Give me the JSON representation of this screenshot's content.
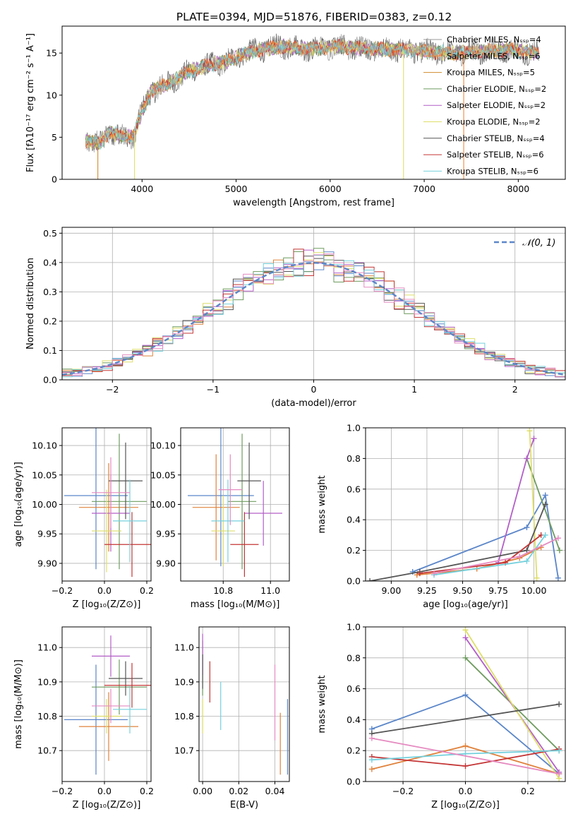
{
  "figure": {
    "title": "PLATE=0394, MJD=51876, FIBERID=0383, z=0.12"
  },
  "colors": {
    "series": [
      "#9a9a9a",
      "#f08a3e",
      "#d08b2b",
      "#6e9b5f",
      "#b35fc7",
      "#dede6a",
      "#555555",
      "#c43535",
      "#74d1dd"
    ],
    "pdf": "#5b86c9"
  },
  "chart_data": [
    {
      "id": "spectrum",
      "type": "line",
      "xlabel": "wavelength [Angstrom, rest frame]",
      "ylabel": "Flux [fλ10⁻¹⁷ erg cm⁻² s⁻¹ A⁻¹]",
      "xlim": [
        3150,
        8500
      ],
      "ylim": [
        0,
        18.2
      ],
      "xticks": [
        4000,
        5000,
        6000,
        7000,
        8000
      ],
      "yticks": [
        0,
        5,
        10,
        15
      ],
      "grid": false,
      "legend_position": "upper-right",
      "legend": [
        "Chabrier MILES, Nₛₛₚ=4",
        "Salpeter MILES, Nₛₛₚ=6",
        "Kroupa MILES, Nₛₛₚ=5",
        "Chabrier ELODIE, Nₛₛₚ=2",
        "Salpeter ELODIE, Nₛₛₚ=2",
        "Kroupa ELODIE, Nₛₛₚ=2",
        "Chabrier STELIB, Nₛₛₚ=4",
        "Salpeter STELIB, Nₛₛₚ=6",
        "Kroupa STELIB, Nₛₛₚ=6"
      ],
      "x_range": [
        3400,
        8220
      ],
      "envelope": [
        [
          3400,
          4.6
        ],
        [
          3550,
          4.2
        ],
        [
          3650,
          5.6
        ],
        [
          3750,
          5.2
        ],
        [
          3900,
          5.0
        ],
        [
          4000,
          8.0
        ],
        [
          4100,
          10.5
        ],
        [
          4300,
          11.5
        ],
        [
          4500,
          12.8
        ],
        [
          4700,
          13.5
        ],
        [
          4900,
          14.0
        ],
        [
          5100,
          15.0
        ],
        [
          5300,
          15.5
        ],
        [
          5500,
          15.8
        ],
        [
          5800,
          15.5
        ],
        [
          6100,
          15.8
        ],
        [
          6400,
          15.5
        ],
        [
          6700,
          15.4
        ],
        [
          7000,
          15.2
        ],
        [
          7300,
          15.0
        ],
        [
          7600,
          15.2
        ],
        [
          7900,
          15.4
        ],
        [
          8220,
          15.0
        ]
      ],
      "dropouts": [
        {
          "x": 3530,
          "series": 2
        },
        {
          "x": 3920,
          "series": 5
        },
        {
          "x": 6780,
          "series": 5
        },
        {
          "x": 7420,
          "series": 1
        }
      ]
    },
    {
      "id": "residuals",
      "type": "histogram",
      "xlabel": "(data-model)/error",
      "ylabel": "Normed distribution",
      "xlim": [
        -2.5,
        2.5
      ],
      "ylim": [
        0,
        0.52
      ],
      "xticks": [
        -2,
        -1,
        0,
        1,
        2
      ],
      "yticks": [
        0.0,
        0.1,
        0.2,
        0.3,
        0.4,
        0.5
      ],
      "grid": true,
      "legend_position": "upper-right",
      "legend": [
        "𝒩(0, 1)"
      ],
      "bin_width": 0.1,
      "series_colors": [
        "#5b86c9",
        "#e0823c",
        "#6e9b5f",
        "#b35fc7",
        "#dede6a",
        "#555555",
        "#c43535",
        "#74d1dd",
        "#e58ac0"
      ]
    },
    {
      "id": "age-vs-Z",
      "type": "errorbar",
      "xlabel": "Z [log₁₀(Z/Z⊙)]",
      "ylabel": "age  [log₁₀(age/yr)]",
      "xlim": [
        -0.2,
        0.22
      ],
      "ylim": [
        9.87,
        10.13
      ],
      "xticks": [
        -0.2,
        0.0,
        0.2
      ],
      "xtick_labels": [
        "−0.2",
        "0.0",
        "0.2"
      ],
      "yticks": [
        9.9,
        9.95,
        10.0,
        10.05,
        10.1
      ],
      "grid": true,
      "points": [
        {
          "x": -0.04,
          "y": 10.015,
          "xerr": 0.15,
          "yerr": 0.125,
          "color": "#5b86c9"
        },
        {
          "x": 0.02,
          "y": 9.995,
          "xerr": 0.14,
          "yerr": 0.075,
          "color": "#e0823c"
        },
        {
          "x": 0.07,
          "y": 10.005,
          "xerr": 0.13,
          "yerr": 0.115,
          "color": "#6e9b5f"
        },
        {
          "x": 0.03,
          "y": 9.985,
          "xerr": 0.09,
          "yerr": 0.065,
          "color": "#b35fc7"
        },
        {
          "x": 0.01,
          "y": 9.955,
          "xerr": 0.07,
          "yerr": 0.07,
          "color": "#dede6a"
        },
        {
          "x": 0.1,
          "y": 10.04,
          "xerr": 0.08,
          "yerr": 0.065,
          "color": "#555555"
        },
        {
          "x": 0.13,
          "y": 9.932,
          "xerr": 0.13,
          "yerr": 0.055,
          "color": "#c43535"
        },
        {
          "x": 0.12,
          "y": 9.972,
          "xerr": 0.08,
          "yerr": 0.07,
          "color": "#74d1dd"
        },
        {
          "x": 0.03,
          "y": 10.02,
          "xerr": 0.09,
          "yerr": 0.06,
          "color": "#e58ac0"
        }
      ]
    },
    {
      "id": "age-vs-mass",
      "type": "errorbar",
      "xlabel": "mass [log₁₀(M/M⊙)]",
      "ylabel": "",
      "xlim": [
        10.62,
        11.08
      ],
      "ylim": [
        9.87,
        10.13
      ],
      "xticks": [
        10.8,
        11.0
      ],
      "xtick_labels": [
        "10.8",
        "11.0"
      ],
      "yticks": [
        9.9,
        9.95,
        10.0,
        10.05,
        10.1
      ],
      "grid": true,
      "points": [
        {
          "x": 10.79,
          "y": 10.015,
          "xerr": 0.14,
          "yerr": 0.12,
          "color": "#5b86c9"
        },
        {
          "x": 10.77,
          "y": 9.995,
          "xerr": 0.1,
          "yerr": 0.09,
          "color": "#e0823c"
        },
        {
          "x": 10.88,
          "y": 10.005,
          "xerr": 0.06,
          "yerr": 0.115,
          "color": "#6e9b5f"
        },
        {
          "x": 10.97,
          "y": 9.985,
          "xerr": 0.08,
          "yerr": 0.055,
          "color": "#b35fc7"
        },
        {
          "x": 10.8,
          "y": 9.955,
          "xerr": 0.05,
          "yerr": 0.06,
          "color": "#dede6a"
        },
        {
          "x": 10.91,
          "y": 10.04,
          "xerr": 0.05,
          "yerr": 0.065,
          "color": "#555555"
        },
        {
          "x": 10.89,
          "y": 9.932,
          "xerr": 0.06,
          "yerr": 0.055,
          "color": "#c43535"
        },
        {
          "x": 10.82,
          "y": 9.972,
          "xerr": 0.07,
          "yerr": 0.07,
          "color": "#74d1dd"
        },
        {
          "x": 10.83,
          "y": 10.025,
          "xerr": 0.05,
          "yerr": 0.06,
          "color": "#e58ac0"
        }
      ]
    },
    {
      "id": "weight-vs-age",
      "type": "line",
      "xlabel": "age  [log₁₀(age/yr)]",
      "ylabel": "mass weight",
      "xlim": [
        8.82,
        10.22
      ],
      "ylim": [
        0,
        1.0
      ],
      "xticks": [
        9.0,
        9.25,
        9.5,
        9.75,
        10.0
      ],
      "xtick_labels": [
        "9.00",
        "9.25",
        "9.50",
        "9.75",
        "10.00"
      ],
      "yticks": [
        0.0,
        0.2,
        0.4,
        0.6,
        0.8,
        1.0
      ],
      "grid": true,
      "series": [
        {
          "color": "#5b86c9",
          "points": [
            [
              9.15,
              0.06
            ],
            [
              9.95,
              0.35
            ],
            [
              10.08,
              0.56
            ],
            [
              10.17,
              0.02
            ]
          ]
        },
        {
          "color": "#e0823c",
          "points": [
            [
              9.18,
              0.04
            ],
            [
              9.6,
              0.08
            ],
            [
              9.9,
              0.15
            ],
            [
              10.05,
              0.22
            ]
          ]
        },
        {
          "color": "#6e9b5f",
          "points": [
            [
              9.95,
              0.8
            ],
            [
              10.18,
              0.2
            ]
          ]
        },
        {
          "color": "#b35fc7",
          "points": [
            [
              9.75,
              0.12
            ],
            [
              9.95,
              0.8
            ],
            [
              10.0,
              0.93
            ]
          ]
        },
        {
          "color": "#dede6a",
          "points": [
            [
              9.97,
              0.98
            ],
            [
              10.02,
              0.02
            ]
          ]
        },
        {
          "color": "#555555",
          "points": [
            [
              8.85,
              0.0
            ],
            [
              9.2,
              0.06
            ],
            [
              9.95,
              0.2
            ],
            [
              10.08,
              0.5
            ]
          ]
        },
        {
          "color": "#c43535",
          "points": [
            [
              9.2,
              0.05
            ],
            [
              9.8,
              0.12
            ],
            [
              10.05,
              0.3
            ]
          ]
        },
        {
          "color": "#74d1dd",
          "points": [
            [
              9.3,
              0.04
            ],
            [
              9.95,
              0.13
            ],
            [
              10.08,
              0.3
            ]
          ]
        },
        {
          "color": "#e58ac0",
          "points": [
            [
              9.3,
              0.05
            ],
            [
              9.9,
              0.16
            ],
            [
              10.17,
              0.28
            ]
          ]
        }
      ]
    },
    {
      "id": "mass-vs-Z",
      "type": "errorbar",
      "xlabel": "Z [log₁₀(Z/Z⊙)]",
      "ylabel": "mass [log₁₀(M/M⊙)]",
      "xlim": [
        -0.2,
        0.22
      ],
      "ylim": [
        10.61,
        11.06
      ],
      "xticks": [
        -0.2,
        0.0,
        0.2
      ],
      "xtick_labels": [
        "−0.2",
        "0.0",
        "0.2"
      ],
      "yticks": [
        10.7,
        10.8,
        10.9,
        11.0
      ],
      "grid": true,
      "points": [
        {
          "x": -0.04,
          "y": 10.79,
          "xerr": 0.15,
          "yerr": 0.16,
          "color": "#5b86c9"
        },
        {
          "x": 0.02,
          "y": 10.77,
          "xerr": 0.14,
          "yerr": 0.1,
          "color": "#e0823c"
        },
        {
          "x": 0.07,
          "y": 10.885,
          "xerr": 0.13,
          "yerr": 0.08,
          "color": "#6e9b5f"
        },
        {
          "x": 0.03,
          "y": 10.975,
          "xerr": 0.09,
          "yerr": 0.06,
          "color": "#b35fc7"
        },
        {
          "x": 0.01,
          "y": 10.8,
          "xerr": 0.07,
          "yerr": 0.05,
          "color": "#dede6a"
        },
        {
          "x": 0.1,
          "y": 10.91,
          "xerr": 0.08,
          "yerr": 0.05,
          "color": "#555555"
        },
        {
          "x": 0.13,
          "y": 10.89,
          "xerr": 0.13,
          "yerr": 0.065,
          "color": "#c43535"
        },
        {
          "x": 0.12,
          "y": 10.82,
          "xerr": 0.08,
          "yerr": 0.07,
          "color": "#74d1dd"
        },
        {
          "x": 0.03,
          "y": 10.83,
          "xerr": 0.09,
          "yerr": 0.05,
          "color": "#e58ac0"
        }
      ]
    },
    {
      "id": "mass-vs-ebv",
      "type": "errorbar",
      "xlabel": "E(B-V)",
      "ylabel": "",
      "xlim": [
        -0.002,
        0.048
      ],
      "ylim": [
        10.61,
        11.06
      ],
      "xticks": [
        0.0,
        0.02,
        0.04
      ],
      "xtick_labels": [
        "0.00",
        "0.02",
        "0.04"
      ],
      "yticks": [
        10.7,
        10.8,
        10.9,
        11.0
      ],
      "grid": true,
      "points": [
        {
          "x": 0.047,
          "y": 10.74,
          "xerr": 0,
          "yerr": 0.11,
          "color": "#5b86c9"
        },
        {
          "x": 0.043,
          "y": 10.72,
          "xerr": 0,
          "yerr": 0.09,
          "color": "#e0823c"
        },
        {
          "x": 0.0,
          "y": 10.94,
          "xerr": 0,
          "yerr": 0.08,
          "color": "#6e9b5f"
        },
        {
          "x": 0.0,
          "y": 10.98,
          "xerr": 0,
          "yerr": 0.06,
          "color": "#b35fc7"
        },
        {
          "x": 0.0,
          "y": 10.8,
          "xerr": 0,
          "yerr": 0.05,
          "color": "#dede6a"
        },
        {
          "x": 0.0,
          "y": 10.93,
          "xerr": 0,
          "yerr": 0.05,
          "color": "#555555"
        },
        {
          "x": 0.004,
          "y": 10.9,
          "xerr": 0,
          "yerr": 0.06,
          "color": "#c43535"
        },
        {
          "x": 0.01,
          "y": 10.83,
          "xerr": 0,
          "yerr": 0.07,
          "color": "#74d1dd"
        },
        {
          "x": 0.04,
          "y": 10.84,
          "xerr": 0,
          "yerr": 0.11,
          "color": "#e58ac0"
        }
      ]
    },
    {
      "id": "weight-vs-Z",
      "type": "line",
      "xlabel": "Z [log₁₀(Z/Z⊙)]",
      "ylabel": "mass weight",
      "xlim": [
        -0.32,
        0.32
      ],
      "ylim": [
        0,
        1.0
      ],
      "xticks": [
        -0.2,
        0.0,
        0.2
      ],
      "xtick_labels": [
        "−0.2",
        "0.0",
        "0.2"
      ],
      "yticks": [
        0.0,
        0.2,
        0.4,
        0.6,
        0.8,
        1.0
      ],
      "grid": true,
      "series": [
        {
          "color": "#5b86c9",
          "points": [
            [
              -0.3,
              0.34
            ],
            [
              0.0,
              0.56
            ],
            [
              0.3,
              0.05
            ]
          ]
        },
        {
          "color": "#e0823c",
          "points": [
            [
              -0.3,
              0.08
            ],
            [
              0.0,
              0.23
            ],
            [
              0.3,
              0.05
            ]
          ]
        },
        {
          "color": "#6e9b5f",
          "points": [
            [
              0.0,
              0.8
            ],
            [
              0.3,
              0.2
            ]
          ]
        },
        {
          "color": "#b35fc7",
          "points": [
            [
              0.0,
              0.93
            ],
            [
              0.3,
              0.06
            ]
          ]
        },
        {
          "color": "#dede6a",
          "points": [
            [
              0.0,
              0.98
            ],
            [
              0.3,
              0.02
            ]
          ]
        },
        {
          "color": "#555555",
          "points": [
            [
              -0.3,
              0.31
            ],
            [
              0.3,
              0.5
            ]
          ]
        },
        {
          "color": "#c43535",
          "points": [
            [
              -0.3,
              0.16
            ],
            [
              0.0,
              0.1
            ],
            [
              0.3,
              0.21
            ]
          ]
        },
        {
          "color": "#74d1dd",
          "points": [
            [
              -0.3,
              0.14
            ],
            [
              0.0,
              0.18
            ],
            [
              0.3,
              0.2
            ]
          ]
        },
        {
          "color": "#e58ac0",
          "points": [
            [
              -0.3,
              0.28
            ],
            [
              0.3,
              0.05
            ]
          ]
        }
      ]
    }
  ]
}
